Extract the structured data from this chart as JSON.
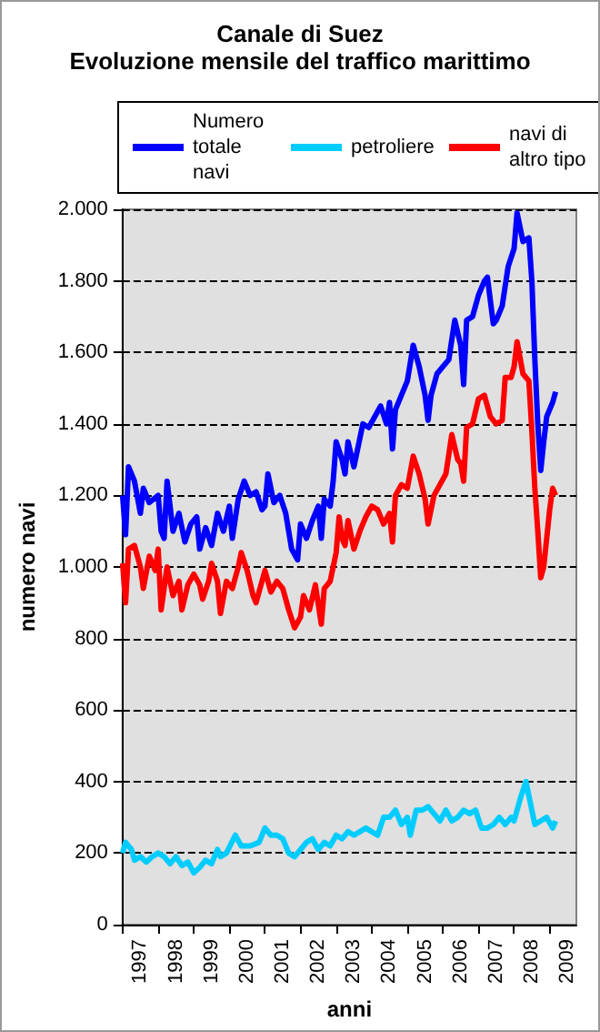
{
  "chart_data": {
    "type": "line",
    "title": "Canale di Suez",
    "subtitle": "Evoluzione mensile del traffico marittimo",
    "xlabel": "anni",
    "ylabel": "numero navi",
    "xlim": [
      "1997-01",
      "2009-10"
    ],
    "xticks": [
      {
        "value": "1997-01",
        "label": null
      },
      {
        "value": "1997-07",
        "label": "1997"
      },
      {
        "value": "1998-01",
        "label": null
      },
      {
        "value": "1998-07",
        "label": "1998"
      },
      {
        "value": "1999-01",
        "label": null
      },
      {
        "value": "1999-07",
        "label": "1999"
      },
      {
        "value": "2000-01",
        "label": null
      },
      {
        "value": "2000-07",
        "label": "2000"
      },
      {
        "value": "2001-01",
        "label": null
      },
      {
        "value": "2001-07",
        "label": "2001"
      },
      {
        "value": "2002-01",
        "label": null
      },
      {
        "value": "2002-07",
        "label": "2002"
      },
      {
        "value": "2003-01",
        "label": null
      },
      {
        "value": "2003-07",
        "label": "2003"
      },
      {
        "value": "2004-01",
        "label": null
      },
      {
        "value": "2004-07",
        "label": "2004"
      },
      {
        "value": "2005-01",
        "label": null
      },
      {
        "value": "2005-07",
        "label": "2005"
      },
      {
        "value": "2006-01",
        "label": null
      },
      {
        "value": "2006-07",
        "label": "2006"
      },
      {
        "value": "2007-01",
        "label": null
      },
      {
        "value": "2007-07",
        "label": "2007"
      },
      {
        "value": "2008-01",
        "label": null
      },
      {
        "value": "2008-07",
        "label": "2008"
      },
      {
        "value": "2009-01",
        "label": null
      },
      {
        "value": "2009-07",
        "label": "2009"
      }
    ],
    "ylim": [
      0,
      2000
    ],
    "yticks": [
      0,
      200,
      400,
      600,
      800,
      {
        "value": 1000,
        "label": "1.000"
      },
      {
        "value": 1200,
        "label": "1.200"
      },
      {
        "value": 1400,
        "label": "1.400"
      },
      {
        "value": 1600,
        "label": "1.600"
      },
      {
        "value": 1800,
        "label": "1.800"
      },
      {
        "value": 2000,
        "label": "2.000"
      }
    ],
    "grid": "y",
    "legend": "top",
    "marker": "none",
    "line_style": "solid",
    "series": [
      {
        "name": "Numero totale navi",
        "color": "#0000ff",
        "x": [
          "1997-01",
          "1997-02",
          "1997-03",
          "1997-05",
          "1997-07",
          "1997-08",
          "1997-10",
          "1998-01",
          "1998-02",
          "1998-03",
          "1998-04",
          "1998-06",
          "1998-08",
          "1998-10",
          "1998-12",
          "1999-02",
          "1999-03",
          "1999-05",
          "1999-07",
          "1999-09",
          "1999-11",
          "2000-01",
          "2000-02",
          "2000-04",
          "2000-06",
          "2000-08",
          "2000-10",
          "2000-12",
          "2001-01",
          "2001-02",
          "2001-04",
          "2001-06",
          "2001-08",
          "2001-10",
          "2001-12",
          "2002-01",
          "2002-03",
          "2002-05",
          "2002-07",
          "2002-08",
          "2002-09",
          "2002-11",
          "2002-12",
          "2003-01",
          "2003-03",
          "2003-04",
          "2003-05",
          "2003-07",
          "2003-09",
          "2003-10",
          "2003-12",
          "2004-02",
          "2004-04",
          "2004-06",
          "2004-07",
          "2004-08",
          "2004-09",
          "2004-11",
          "2005-01",
          "2005-03",
          "2005-05",
          "2005-07",
          "2005-08",
          "2005-09",
          "2005-11",
          "2006-01",
          "2006-03",
          "2006-05",
          "2006-07",
          "2006-08",
          "2006-09",
          "2006-11",
          "2007-01",
          "2007-03",
          "2007-04",
          "2007-06",
          "2007-07",
          "2007-09",
          "2007-11",
          "2008-01",
          "2008-02",
          "2008-04",
          "2008-06",
          "2008-07",
          "2008-08",
          "2008-09",
          "2008-10",
          "2008-11",
          "2008-12",
          "2009-02",
          "2009-03"
        ],
        "values": [
          1200,
          1090,
          1280,
          1240,
          1150,
          1220,
          1180,
          1200,
          1100,
          1080,
          1240,
          1100,
          1150,
          1070,
          1120,
          1140,
          1050,
          1110,
          1060,
          1150,
          1100,
          1170,
          1080,
          1190,
          1240,
          1200,
          1210,
          1160,
          1170,
          1260,
          1180,
          1200,
          1150,
          1050,
          1020,
          1120,
          1080,
          1130,
          1170,
          1080,
          1190,
          1170,
          1240,
          1350,
          1300,
          1260,
          1350,
          1280,
          1360,
          1400,
          1390,
          1420,
          1450,
          1400,
          1460,
          1330,
          1440,
          1480,
          1520,
          1620,
          1560,
          1480,
          1410,
          1480,
          1540,
          1560,
          1580,
          1690,
          1620,
          1510,
          1690,
          1700,
          1760,
          1800,
          1810,
          1680,
          1690,
          1730,
          1840,
          1890,
          1990,
          1910,
          1920,
          1800,
          1580,
          1400,
          1270,
          1350,
          1420,
          1460,
          1490
        ]
      },
      {
        "name": "petroliere",
        "color": "#00ccff",
        "x": [
          "1997-01",
          "1997-02",
          "1997-04",
          "1997-05",
          "1997-07",
          "1997-09",
          "1997-11",
          "1998-01",
          "1998-03",
          "1998-05",
          "1998-07",
          "1998-09",
          "1998-11",
          "1999-01",
          "1999-03",
          "1999-05",
          "1999-07",
          "1999-09",
          "1999-10",
          "1999-12",
          "2000-03",
          "2000-05",
          "2000-08",
          "2000-11",
          "2001-01",
          "2001-03",
          "2001-05",
          "2001-07",
          "2001-09",
          "2001-11",
          "2002-01",
          "2002-03",
          "2002-05",
          "2002-07",
          "2002-09",
          "2002-11",
          "2003-01",
          "2003-03",
          "2003-05",
          "2003-07",
          "2003-09",
          "2003-11",
          "2004-01",
          "2004-03",
          "2004-05",
          "2004-07",
          "2004-09",
          "2004-11",
          "2005-01",
          "2005-02",
          "2005-04",
          "2005-06",
          "2005-08",
          "2005-10",
          "2005-12",
          "2006-02",
          "2006-04",
          "2006-06",
          "2006-08",
          "2006-10",
          "2006-12",
          "2007-02",
          "2007-04",
          "2007-06",
          "2007-08",
          "2007-10",
          "2007-12",
          "2008-01",
          "2008-03",
          "2008-05",
          "2008-06",
          "2008-08",
          "2008-10",
          "2008-12",
          "2009-02",
          "2009-03"
        ],
        "values": [
          200,
          230,
          210,
          180,
          190,
          175,
          190,
          200,
          190,
          170,
          190,
          165,
          175,
          145,
          160,
          180,
          170,
          210,
          190,
          200,
          250,
          220,
          220,
          230,
          270,
          250,
          250,
          240,
          200,
          190,
          210,
          230,
          240,
          210,
          230,
          220,
          250,
          240,
          260,
          250,
          260,
          270,
          260,
          250,
          300,
          300,
          320,
          280,
          300,
          250,
          320,
          320,
          330,
          310,
          290,
          320,
          290,
          300,
          320,
          310,
          320,
          270,
          270,
          280,
          300,
          280,
          300,
          290,
          350,
          400,
          360,
          280,
          290,
          300,
          270,
          290
        ]
      },
      {
        "name": "navi di altro tipo",
        "color": "#ff0000",
        "x": [
          "1997-01",
          "1997-02",
          "1997-03",
          "1997-05",
          "1997-07",
          "1997-08",
          "1997-10",
          "1997-12",
          "1998-01",
          "1998-02",
          "1998-04",
          "1998-06",
          "1998-08",
          "1998-09",
          "1998-11",
          "1999-01",
          "1999-03",
          "1999-04",
          "1999-06",
          "1999-07",
          "1999-09",
          "1999-10",
          "1999-12",
          "2000-02",
          "2000-04",
          "2000-05",
          "2000-07",
          "2000-09",
          "2000-10",
          "2001-01",
          "2001-03",
          "2001-05",
          "2001-07",
          "2001-09",
          "2001-11",
          "2002-01",
          "2002-02",
          "2002-04",
          "2002-06",
          "2002-08",
          "2002-09",
          "2002-11",
          "2003-01",
          "2003-02",
          "2003-03",
          "2003-04",
          "2003-05",
          "2003-07",
          "2003-09",
          "2003-11",
          "2004-01",
          "2004-03",
          "2004-05",
          "2004-07",
          "2004-08",
          "2004-09",
          "2004-11",
          "2005-01",
          "2005-03",
          "2005-05",
          "2005-07",
          "2005-08",
          "2005-10",
          "2005-12",
          "2006-02",
          "2006-04",
          "2006-06",
          "2006-07",
          "2006-08",
          "2006-09",
          "2006-11",
          "2007-01",
          "2007-03",
          "2007-05",
          "2007-07",
          "2007-09",
          "2007-10",
          "2007-12",
          "2008-01",
          "2008-02",
          "2008-04",
          "2008-06",
          "2008-07",
          "2008-08",
          "2008-09",
          "2008-10",
          "2008-11",
          "2009-01",
          "2009-02",
          "2009-03"
        ],
        "values": [
          1010,
          900,
          1050,
          1060,
          1000,
          940,
          1030,
          990,
          1050,
          880,
          1000,
          920,
          960,
          880,
          950,
          980,
          950,
          910,
          960,
          1010,
          960,
          870,
          960,
          940,
          1000,
          1040,
          990,
          920,
          900,
          990,
          930,
          960,
          940,
          880,
          830,
          860,
          920,
          880,
          950,
          840,
          940,
          960,
          1040,
          1140,
          1080,
          1060,
          1130,
          1050,
          1100,
          1140,
          1170,
          1160,
          1120,
          1150,
          1070,
          1200,
          1230,
          1220,
          1310,
          1260,
          1190,
          1120,
          1200,
          1230,
          1260,
          1370,
          1300,
          1290,
          1240,
          1390,
          1400,
          1470,
          1480,
          1420,
          1400,
          1410,
          1530,
          1530,
          1560,
          1630,
          1540,
          1520,
          1380,
          1220,
          1100,
          970,
          1000,
          1160,
          1220,
          1200
        ]
      }
    ]
  }
}
